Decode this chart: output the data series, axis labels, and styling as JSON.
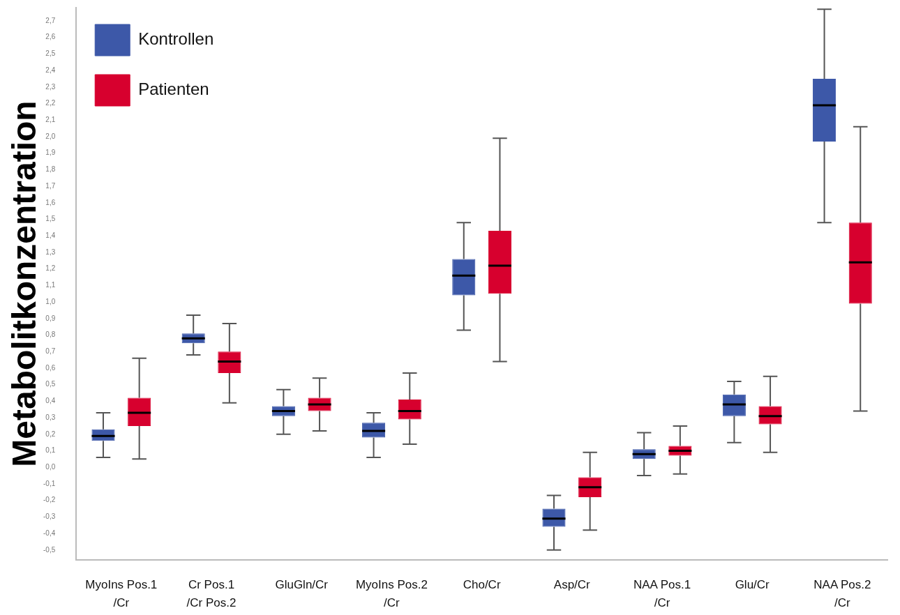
{
  "chart_data": {
    "type": "box",
    "ylabel": "Metabolitkonzentration",
    "legend": "top left",
    "categories": [
      "MyoIns Pos.1 /Cr",
      "Cr Pos.1 /Cr Pos.2",
      "GluGln/Cr",
      "MyoIns Pos.2 /Cr",
      "Cho/Cr",
      "Asp/Cr",
      "NAA Pos.1 /Cr",
      "Glu/Cr",
      "NAA Pos.2 /Cr"
    ],
    "series": [
      {
        "name": "Kontrollen",
        "color": "#3d58a8",
        "boxes": [
          {
            "low": 0.06,
            "q1": 0.16,
            "median": 0.19,
            "q3": 0.23,
            "high": 0.33
          },
          {
            "low": 0.68,
            "q1": 0.75,
            "median": 0.78,
            "q3": 0.81,
            "high": 0.92
          },
          {
            "low": 0.2,
            "q1": 0.31,
            "median": 0.34,
            "q3": 0.37,
            "high": 0.47
          },
          {
            "low": 0.06,
            "q1": 0.18,
            "median": 0.22,
            "q3": 0.27,
            "high": 0.33
          },
          {
            "low": 0.83,
            "q1": 1.04,
            "median": 1.16,
            "q3": 1.26,
            "high": 1.48
          },
          {
            "low": -0.5,
            "q1": -0.36,
            "median": -0.31,
            "q3": -0.25,
            "high": -0.17
          },
          {
            "low": -0.05,
            "q1": 0.05,
            "median": 0.08,
            "q3": 0.11,
            "high": 0.21
          },
          {
            "low": 0.15,
            "q1": 0.31,
            "median": 0.38,
            "q3": 0.44,
            "high": 0.52
          },
          {
            "low": 1.48,
            "q1": 1.97,
            "median": 2.19,
            "q3": 2.35,
            "high": 2.77
          }
        ]
      },
      {
        "name": "Patienten",
        "color": "#d7002e",
        "boxes": [
          {
            "low": 0.05,
            "q1": 0.25,
            "median": 0.33,
            "q3": 0.42,
            "high": 0.66
          },
          {
            "low": 0.39,
            "q1": 0.57,
            "median": 0.64,
            "q3": 0.7,
            "high": 0.87
          },
          {
            "low": 0.22,
            "q1": 0.34,
            "median": 0.38,
            "q3": 0.42,
            "high": 0.54
          },
          {
            "low": 0.14,
            "q1": 0.29,
            "median": 0.34,
            "q3": 0.41,
            "high": 0.57
          },
          {
            "low": 0.64,
            "q1": 1.05,
            "median": 1.22,
            "q3": 1.43,
            "high": 1.99
          },
          {
            "low": -0.38,
            "q1": -0.18,
            "median": -0.12,
            "q3": -0.06,
            "high": 0.09
          },
          {
            "low": -0.04,
            "q1": 0.07,
            "median": 0.1,
            "q3": 0.13,
            "high": 0.25
          },
          {
            "low": 0.09,
            "q1": 0.26,
            "median": 0.31,
            "q3": 0.37,
            "high": 0.55
          },
          {
            "low": 0.34,
            "q1": 0.99,
            "median": 1.24,
            "q3": 1.48,
            "high": 2.06
          }
        ]
      }
    ],
    "ylim": [
      -0.56,
      2.78
    ],
    "yticks": [
      {
        "value": -0.5,
        "label": "-0,5"
      },
      {
        "value": -0.4,
        "label": "-0,4"
      },
      {
        "value": -0.3,
        "label": "-0,3"
      },
      {
        "value": -0.2,
        "label": "-0,2"
      },
      {
        "value": -0.1,
        "label": "-0,1"
      },
      {
        "value": 0,
        "label": "0,0"
      },
      {
        "value": 0.1,
        "label": "0,1"
      },
      {
        "value": 0.2,
        "label": "0,2"
      },
      {
        "value": 0.3,
        "label": "0,3"
      },
      {
        "value": 0.4,
        "label": "0,4"
      },
      {
        "value": 0.5,
        "label": "0,5"
      },
      {
        "value": 0.6,
        "label": "0,6"
      },
      {
        "value": 0.7,
        "label": "0,7"
      },
      {
        "value": 0.8,
        "label": "0,8"
      },
      {
        "value": 0.9,
        "label": "0,9"
      },
      {
        "value": 1,
        "label": "1,0"
      },
      {
        "value": 1.1,
        "label": "1,1"
      },
      {
        "value": 1.2,
        "label": "1,2"
      },
      {
        "value": 1.3,
        "label": "1,3"
      },
      {
        "value": 1.4,
        "label": "1,4"
      },
      {
        "value": 1.5,
        "label": "1,5"
      },
      {
        "value": 1.6,
        "label": "1,6"
      },
      {
        "value": 1.7,
        "label": "1,7"
      },
      {
        "value": 1.8,
        "label": "1,8"
      },
      {
        "value": 1.9,
        "label": "1,9"
      },
      {
        "value": 2,
        "label": "2,0"
      },
      {
        "value": 2.1,
        "label": "2,1"
      },
      {
        "value": 2.2,
        "label": "2,2"
      },
      {
        "value": 2.3,
        "label": "2,3"
      },
      {
        "value": 2.4,
        "label": "2,4"
      },
      {
        "value": 2.5,
        "label": "2,5"
      },
      {
        "value": 2.6,
        "label": "2,6"
      },
      {
        "value": 2.7,
        "label": "2,7"
      }
    ]
  }
}
